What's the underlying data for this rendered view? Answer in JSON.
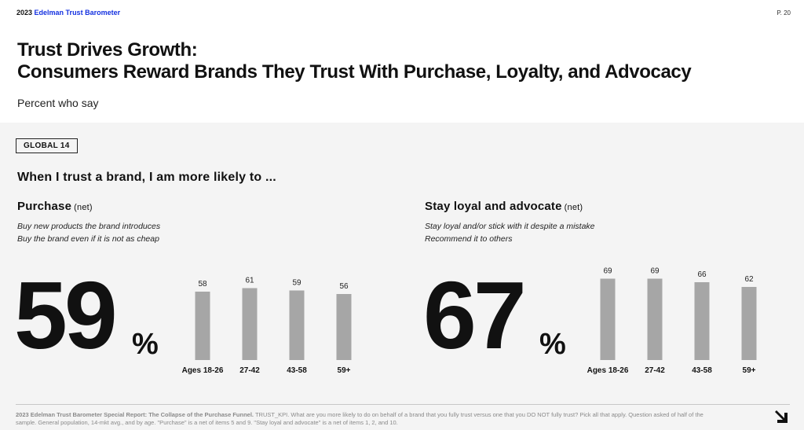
{
  "header": {
    "brand_year": "2023",
    "brand_name": "Edelman Trust Barometer",
    "page_number": "P. 20"
  },
  "title_line1": "Trust Drives Growth:",
  "title_line2": "Consumers Reward Brands They Trust With Purchase, Loyalty, and Advocacy",
  "subtitle": "Percent who say",
  "tag": "GLOBAL 14",
  "lead": "When I trust a brand, I am more likely to ...",
  "purchase": {
    "heading": "Purchase",
    "net": "(net)",
    "items": [
      "Buy new products the brand introduces",
      "Buy the brand even if it is not as cheap"
    ],
    "big_value": "59",
    "percent_sign": "%"
  },
  "loyal": {
    "heading": "Stay loyal and advocate",
    "net": "(net)",
    "items": [
      "Stay loyal and/or stick with it despite a mistake",
      "Recommend it to others"
    ],
    "big_value": "67",
    "percent_sign": "%"
  },
  "chart_data": [
    {
      "type": "bar",
      "categories": [
        "Ages 18-26",
        "27-42",
        "43-58",
        "59+"
      ],
      "values": [
        58,
        61,
        59,
        56
      ],
      "ylim": [
        0,
        80
      ],
      "bar_color": "#a6a6a6"
    },
    {
      "type": "bar",
      "categories": [
        "Ages 18-26",
        "27-42",
        "43-58",
        "59+"
      ],
      "values": [
        69,
        69,
        66,
        62
      ],
      "ylim": [
        0,
        80
      ],
      "bar_color": "#a6a6a6"
    }
  ],
  "footnote": {
    "bold": "2023 Edelman Trust Barometer Special Report: The Collapse of the Purchase Funnel.",
    "text": " TRUST_KPI. What are you more likely to do on behalf of a brand that you fully trust versus one that you DO NOT fully trust? Pick all that apply. Question asked of half of the sample. General population, 14-mkt avg., and by age. \"Purchase\" is a net of items 5 and 9. \"Stay loyal and advocate\" is a net of items 1, 2, and 10."
  },
  "next_icon": "arrow-down-right-icon"
}
